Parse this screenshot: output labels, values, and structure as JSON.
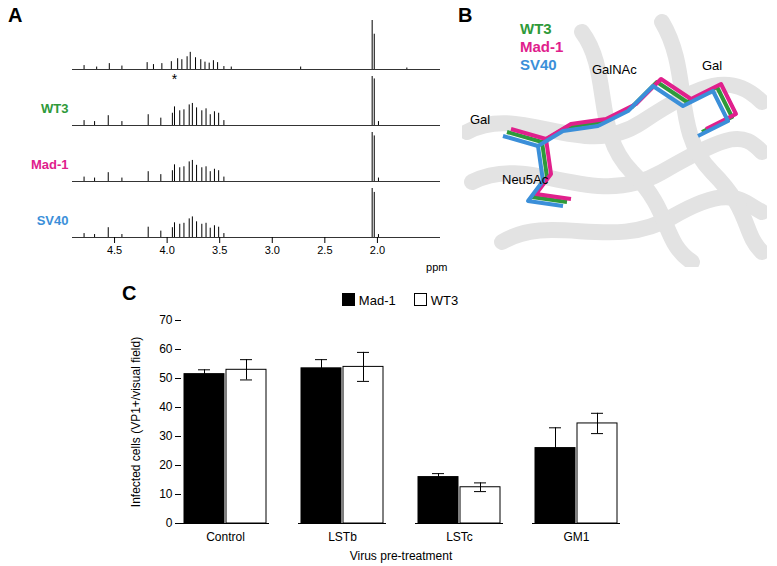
{
  "chart_data": [
    {
      "type": "spectrum",
      "title": "A",
      "xlabel": "ppm",
      "xlim": [
        4.9,
        1.4
      ],
      "xticks": [
        4.5,
        {
          "value": 4,
          "label": "4.0"
        },
        3.5,
        {
          "value": 3,
          "label": "3.0"
        },
        2.5,
        {
          "value": 2,
          "label": "2.0"
        }
      ],
      "ylim": [
        0,
        1
      ],
      "tick_labels": "x",
      "series": [
        {
          "x": [
            4.79,
            4.67,
            4.55,
            4.43,
            4.19,
            4.13,
            4.05,
            3.96,
            3.9,
            3.86,
            3.81,
            3.78,
            3.73,
            3.68,
            3.64,
            3.6,
            3.56,
            3.52,
            3.46,
            3.39,
            2.73,
            2.05,
            2.03,
            1.72
          ],
          "values": [
            0.08,
            0.05,
            0.12,
            0.07,
            0.14,
            0.1,
            0.12,
            0.16,
            0.22,
            0.2,
            0.26,
            0.35,
            0.24,
            0.2,
            0.15,
            0.13,
            0.18,
            0.14,
            0.06,
            0.05,
            0.05,
            1.0,
            0.72,
            0.03
          ]
        },
        {
          "name": "WT3",
          "color": "#2e9a3a",
          "x": [
            4.79,
            4.69,
            4.56,
            4.43,
            4.18,
            4.06,
            3.95,
            3.93,
            3.88,
            3.84,
            3.79,
            3.76,
            3.72,
            3.67,
            3.63,
            3.59,
            3.55,
            3.51,
            3.46,
            2.05,
            2.03,
            1.99
          ],
          "values": [
            0.1,
            0.08,
            0.2,
            0.08,
            0.22,
            0.15,
            0.25,
            0.38,
            0.3,
            0.32,
            0.42,
            0.45,
            0.36,
            0.3,
            0.34,
            0.22,
            0.28,
            0.25,
            0.1,
            1.0,
            0.95,
            0.08
          ]
        },
        {
          "name": "Mad-1",
          "color": "#e0208c",
          "x": [
            4.79,
            4.69,
            4.56,
            4.43,
            4.18,
            4.06,
            3.95,
            3.93,
            3.88,
            3.84,
            3.79,
            3.76,
            3.72,
            3.67,
            3.63,
            3.59,
            3.55,
            3.51,
            3.46,
            2.05,
            2.03,
            1.99
          ],
          "values": [
            0.09,
            0.07,
            0.18,
            0.07,
            0.2,
            0.14,
            0.22,
            0.34,
            0.28,
            0.3,
            0.4,
            0.43,
            0.33,
            0.28,
            0.3,
            0.2,
            0.25,
            0.22,
            0.09,
            1.0,
            0.93,
            0.07
          ]
        },
        {
          "name": "SV40",
          "color": "#3b8fd9",
          "x": [
            4.79,
            4.69,
            4.56,
            4.43,
            4.18,
            4.06,
            3.95,
            3.93,
            3.88,
            3.84,
            3.79,
            3.76,
            3.72,
            3.67,
            3.63,
            3.59,
            3.55,
            3.51,
            3.46,
            2.05,
            2.03,
            1.99
          ],
          "values": [
            0.08,
            0.06,
            0.2,
            0.06,
            0.21,
            0.13,
            0.2,
            0.3,
            0.27,
            0.29,
            0.38,
            0.42,
            0.32,
            0.27,
            0.29,
            0.19,
            0.24,
            0.21,
            0.08,
            1.0,
            0.92,
            0.06
          ]
        }
      ],
      "annotations": [
        {
          "text": "*",
          "x": 3.93,
          "series": "WT3"
        }
      ]
    },
    {
      "type": "bar",
      "title": "C",
      "categories": [
        "Control",
        "LSTb",
        "LSTc",
        "GM1"
      ],
      "xlabel": "Virus pre-treatment",
      "ylabel": "Infected cells (VP1+/visual field)",
      "ylim": [
        0,
        70
      ],
      "yticks": [
        0,
        10,
        20,
        30,
        40,
        50,
        60,
        70
      ],
      "legend": "top",
      "series": [
        {
          "name": "Mad-1",
          "color": "#000000",
          "values": [
            51.5,
            53.5,
            16,
            26
          ],
          "errors": [
            1.5,
            3,
            1.2,
            7
          ]
        },
        {
          "name": "WT3",
          "color": "#ffffff",
          "values": [
            53,
            54,
            12.5,
            34.5
          ],
          "errors": [
            3.5,
            5,
            1.5,
            3.5
          ]
        }
      ]
    }
  ],
  "panel_b": {
    "title": "B",
    "legend": [
      {
        "name": "WT3",
        "color": "#2e9a3a"
      },
      {
        "name": "Mad-1",
        "color": "#e0208c"
      },
      {
        "name": "SV40",
        "color": "#3b8fd9"
      }
    ],
    "labels": [
      "Gal",
      "GalNAc",
      "Gal",
      "Neu5Ac"
    ]
  }
}
